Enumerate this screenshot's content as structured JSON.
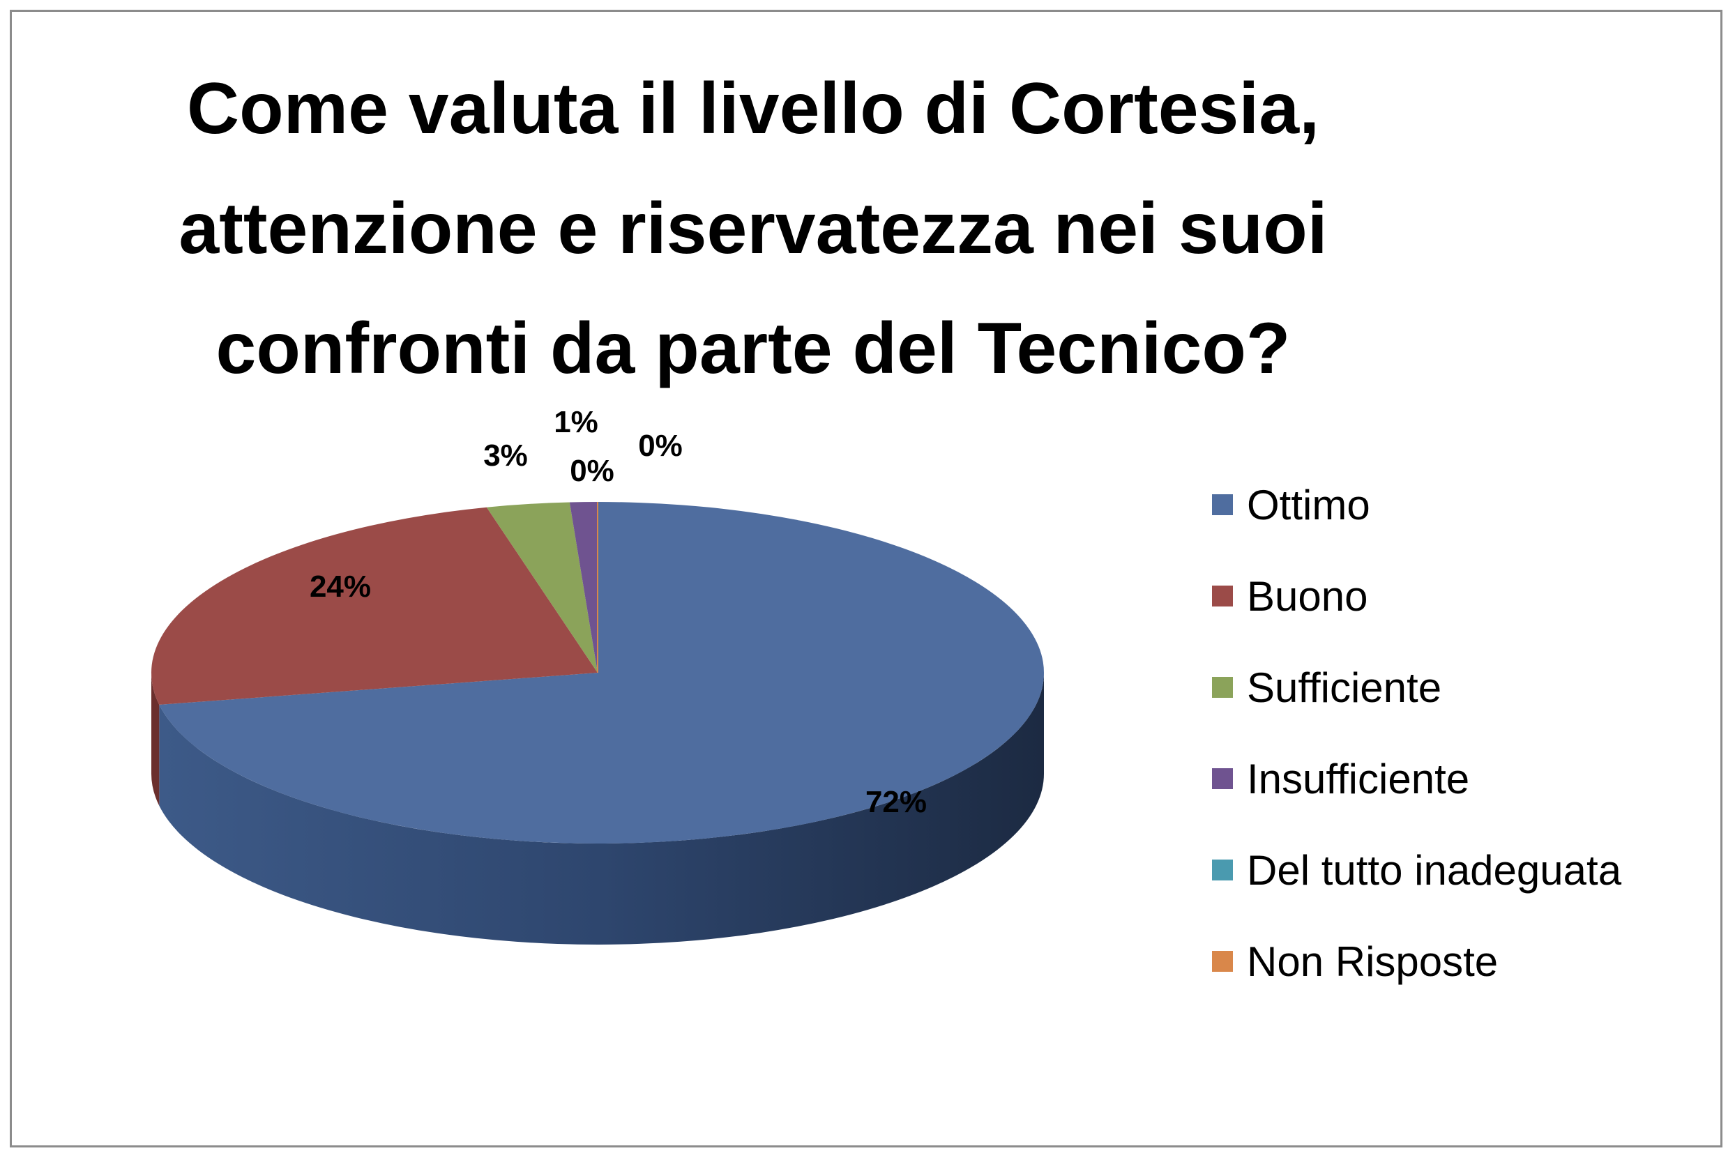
{
  "chart_data": {
    "type": "pie",
    "title": "Come valuta il livello di Cortesia, attenzione e riservatezza nei suoi confronti da parte del Tecnico?",
    "title_lines": [
      "Come valuta il livello di Cortesia,",
      "attenzione e riservatezza nei suoi",
      "confronti da parte del Tecnico?"
    ],
    "style": "3d",
    "legend_position": "right",
    "categories": [
      "Ottimo",
      "Buono",
      "Sufficiente",
      "Insufficiente",
      "Del tutto inadeguata",
      "Non Risposte"
    ],
    "values": [
      72,
      24,
      3,
      1,
      0,
      0
    ],
    "labels": [
      "72%",
      "24%",
      "3%",
      "1%",
      "0%",
      "0%"
    ],
    "colors": [
      "#4F6D9F",
      "#9B4B48",
      "#8BA35A",
      "#6F5390",
      "#4A9AAF",
      "#D9874A"
    ],
    "side_colors": [
      "#2E4266",
      "#6B2F2D",
      "#5C7038",
      "#47335E",
      "#2F6A7A",
      "#9B5A2C"
    ]
  }
}
